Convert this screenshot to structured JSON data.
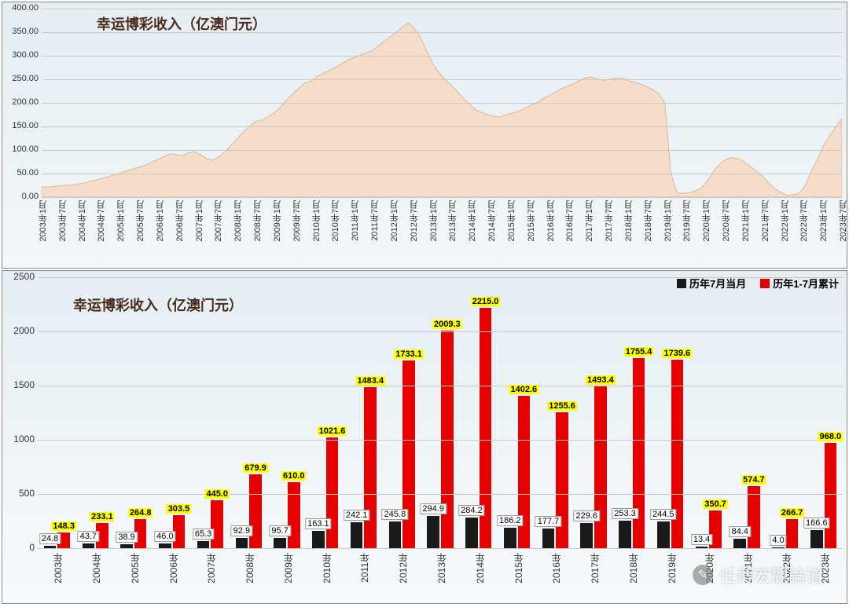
{
  "top_chart": {
    "type": "area",
    "title": "幸运博彩收入（亿澳门元）",
    "title_fontsize": 18,
    "title_color": "#4a2a1a",
    "background_gradient": [
      "#e4eef3",
      "#f2f7fa"
    ],
    "ylim": [
      0,
      400
    ],
    "ytick_step": 50,
    "yticks": [
      "0.00",
      "50.00",
      "100.00",
      "150.00",
      "200.00",
      "250.00",
      "300.00",
      "350.00",
      "400.00"
    ],
    "x_labels": [
      "2003年1月",
      "2003年7月",
      "2004年1月",
      "2004年7月",
      "2005年1月",
      "2005年7月",
      "2006年1月",
      "2006年7月",
      "2007年1月",
      "2007年7月",
      "2008年1月",
      "2008年7月",
      "2009年1月",
      "2009年7月",
      "2010年1月",
      "2010年7月",
      "2011年1月",
      "2011年7月",
      "2012年1月",
      "2012年7月",
      "2013年1月",
      "2013年7月",
      "2014年1月",
      "2014年7月",
      "2015年1月",
      "2015年7月",
      "2016年1月",
      "2016年7月",
      "2017年1月",
      "2017年7月",
      "2018年1月",
      "2018年7月",
      "2019年1月",
      "2019年7月",
      "2020年1月",
      "2020年7月",
      "2021年1月",
      "2021年7月",
      "2022年1月",
      "2022年7月",
      "2023年1月",
      "2023年7月"
    ],
    "fill_color": "#f5ddc9",
    "line_color": "#d9b896",
    "grid_color": "#c8c8c8",
    "axis_font_size": 11,
    "values": [
      22,
      21,
      23,
      24,
      25,
      26,
      28,
      30,
      34,
      36,
      40,
      44,
      48,
      52,
      56,
      60,
      64,
      68,
      74,
      80,
      86,
      92,
      90,
      88,
      94,
      96,
      90,
      82,
      78,
      86,
      96,
      110,
      124,
      138,
      150,
      160,
      163,
      170,
      178,
      190,
      205,
      218,
      230,
      242,
      245,
      255,
      262,
      268,
      275,
      282,
      290,
      295,
      300,
      305,
      310,
      320,
      330,
      340,
      350,
      360,
      370,
      358,
      340,
      310,
      284,
      265,
      250,
      238,
      225,
      210,
      198,
      186,
      180,
      175,
      172,
      170,
      175,
      178,
      182,
      188,
      195,
      200,
      208,
      215,
      222,
      230,
      235,
      240,
      248,
      253,
      255,
      250,
      248,
      250,
      252,
      253,
      248,
      244,
      240,
      235,
      228,
      220,
      200,
      50,
      10,
      8,
      10,
      13,
      20,
      35,
      55,
      70,
      80,
      84,
      82,
      75,
      65,
      55,
      45,
      30,
      18,
      10,
      4,
      5,
      8,
      25,
      55,
      80,
      110,
      130,
      150,
      166
    ]
  },
  "bottom_chart": {
    "type": "grouped_bar",
    "title": "幸运博彩收入（亿澳门元）",
    "title_fontsize": 18,
    "title_color": "#4a2a1a",
    "background_gradient": [
      "#e4eef3",
      "#f7fafc"
    ],
    "ylim": [
      0,
      2500
    ],
    "ytick_step": 500,
    "yticks": [
      "0",
      "500",
      "1000",
      "1500",
      "2000",
      "2500"
    ],
    "grid_color": "#c8c8c8",
    "categories": [
      "2003年",
      "2004年",
      "2005年",
      "2006年",
      "2007年",
      "2008年",
      "2009年",
      "2010年",
      "2011年",
      "2012年",
      "2013年",
      "2014年",
      "2015年",
      "2016年",
      "2017年",
      "2018年",
      "2019年",
      "2020年",
      "2021年",
      "2022年",
      "2023年"
    ],
    "legend": [
      {
        "label": "历年7月当月",
        "color": "#1a1a1a"
      },
      {
        "label": "历年1-7月累计",
        "color": "#e60000"
      }
    ],
    "series1_color": "#1a1a1a",
    "series2_color": "#e60000",
    "bar_width_ratio": 0.32,
    "series1_values": [
      24.8,
      43.7,
      38.9,
      46.0,
      65.3,
      92.9,
      95.7,
      163.1,
      242.1,
      245.8,
      294.9,
      284.2,
      186.2,
      177.7,
      229.6,
      253.3,
      244.5,
      13.4,
      84.4,
      4.0,
      166.6
    ],
    "series2_values": [
      148.3,
      233.1,
      264.8,
      303.5,
      445.0,
      679.9,
      610.0,
      1021.6,
      1483.4,
      1733.1,
      2009.3,
      2215.0,
      1402.6,
      1255.6,
      1493.4,
      1755.4,
      1739.6,
      350.7,
      574.7,
      266.7,
      968.0
    ],
    "label_bg_yellow": "#ffff00",
    "label_bg_white": "#ffffff",
    "axis_font_size": 12
  },
  "watermark": {
    "text": "任博宏觀論道",
    "icon": "✎"
  }
}
